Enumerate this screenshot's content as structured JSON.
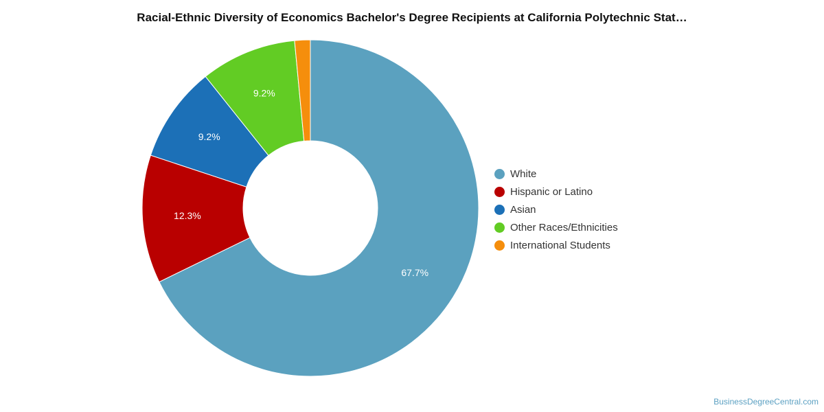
{
  "chart_data": {
    "type": "pie",
    "variant": "donut",
    "title": "Racial-Ethnic Diversity of Economics Bachelor's Degree Recipients at California Polytechnic Stat…",
    "categories": [
      "White",
      "Hispanic or Latino",
      "Asian",
      "Other Races/Ethnicities",
      "International Students"
    ],
    "values": [
      67.7,
      12.3,
      9.2,
      9.2,
      1.5
    ],
    "value_labels": [
      "67.7%",
      "12.3%",
      "9.2%",
      "9.2%",
      ""
    ],
    "colors": [
      "#5ba1bf",
      "#b90000",
      "#1c70b7",
      "#62cc24",
      "#f58e0c"
    ],
    "legend_position": "right"
  },
  "credit": "BusinessDegreeCentral.com"
}
